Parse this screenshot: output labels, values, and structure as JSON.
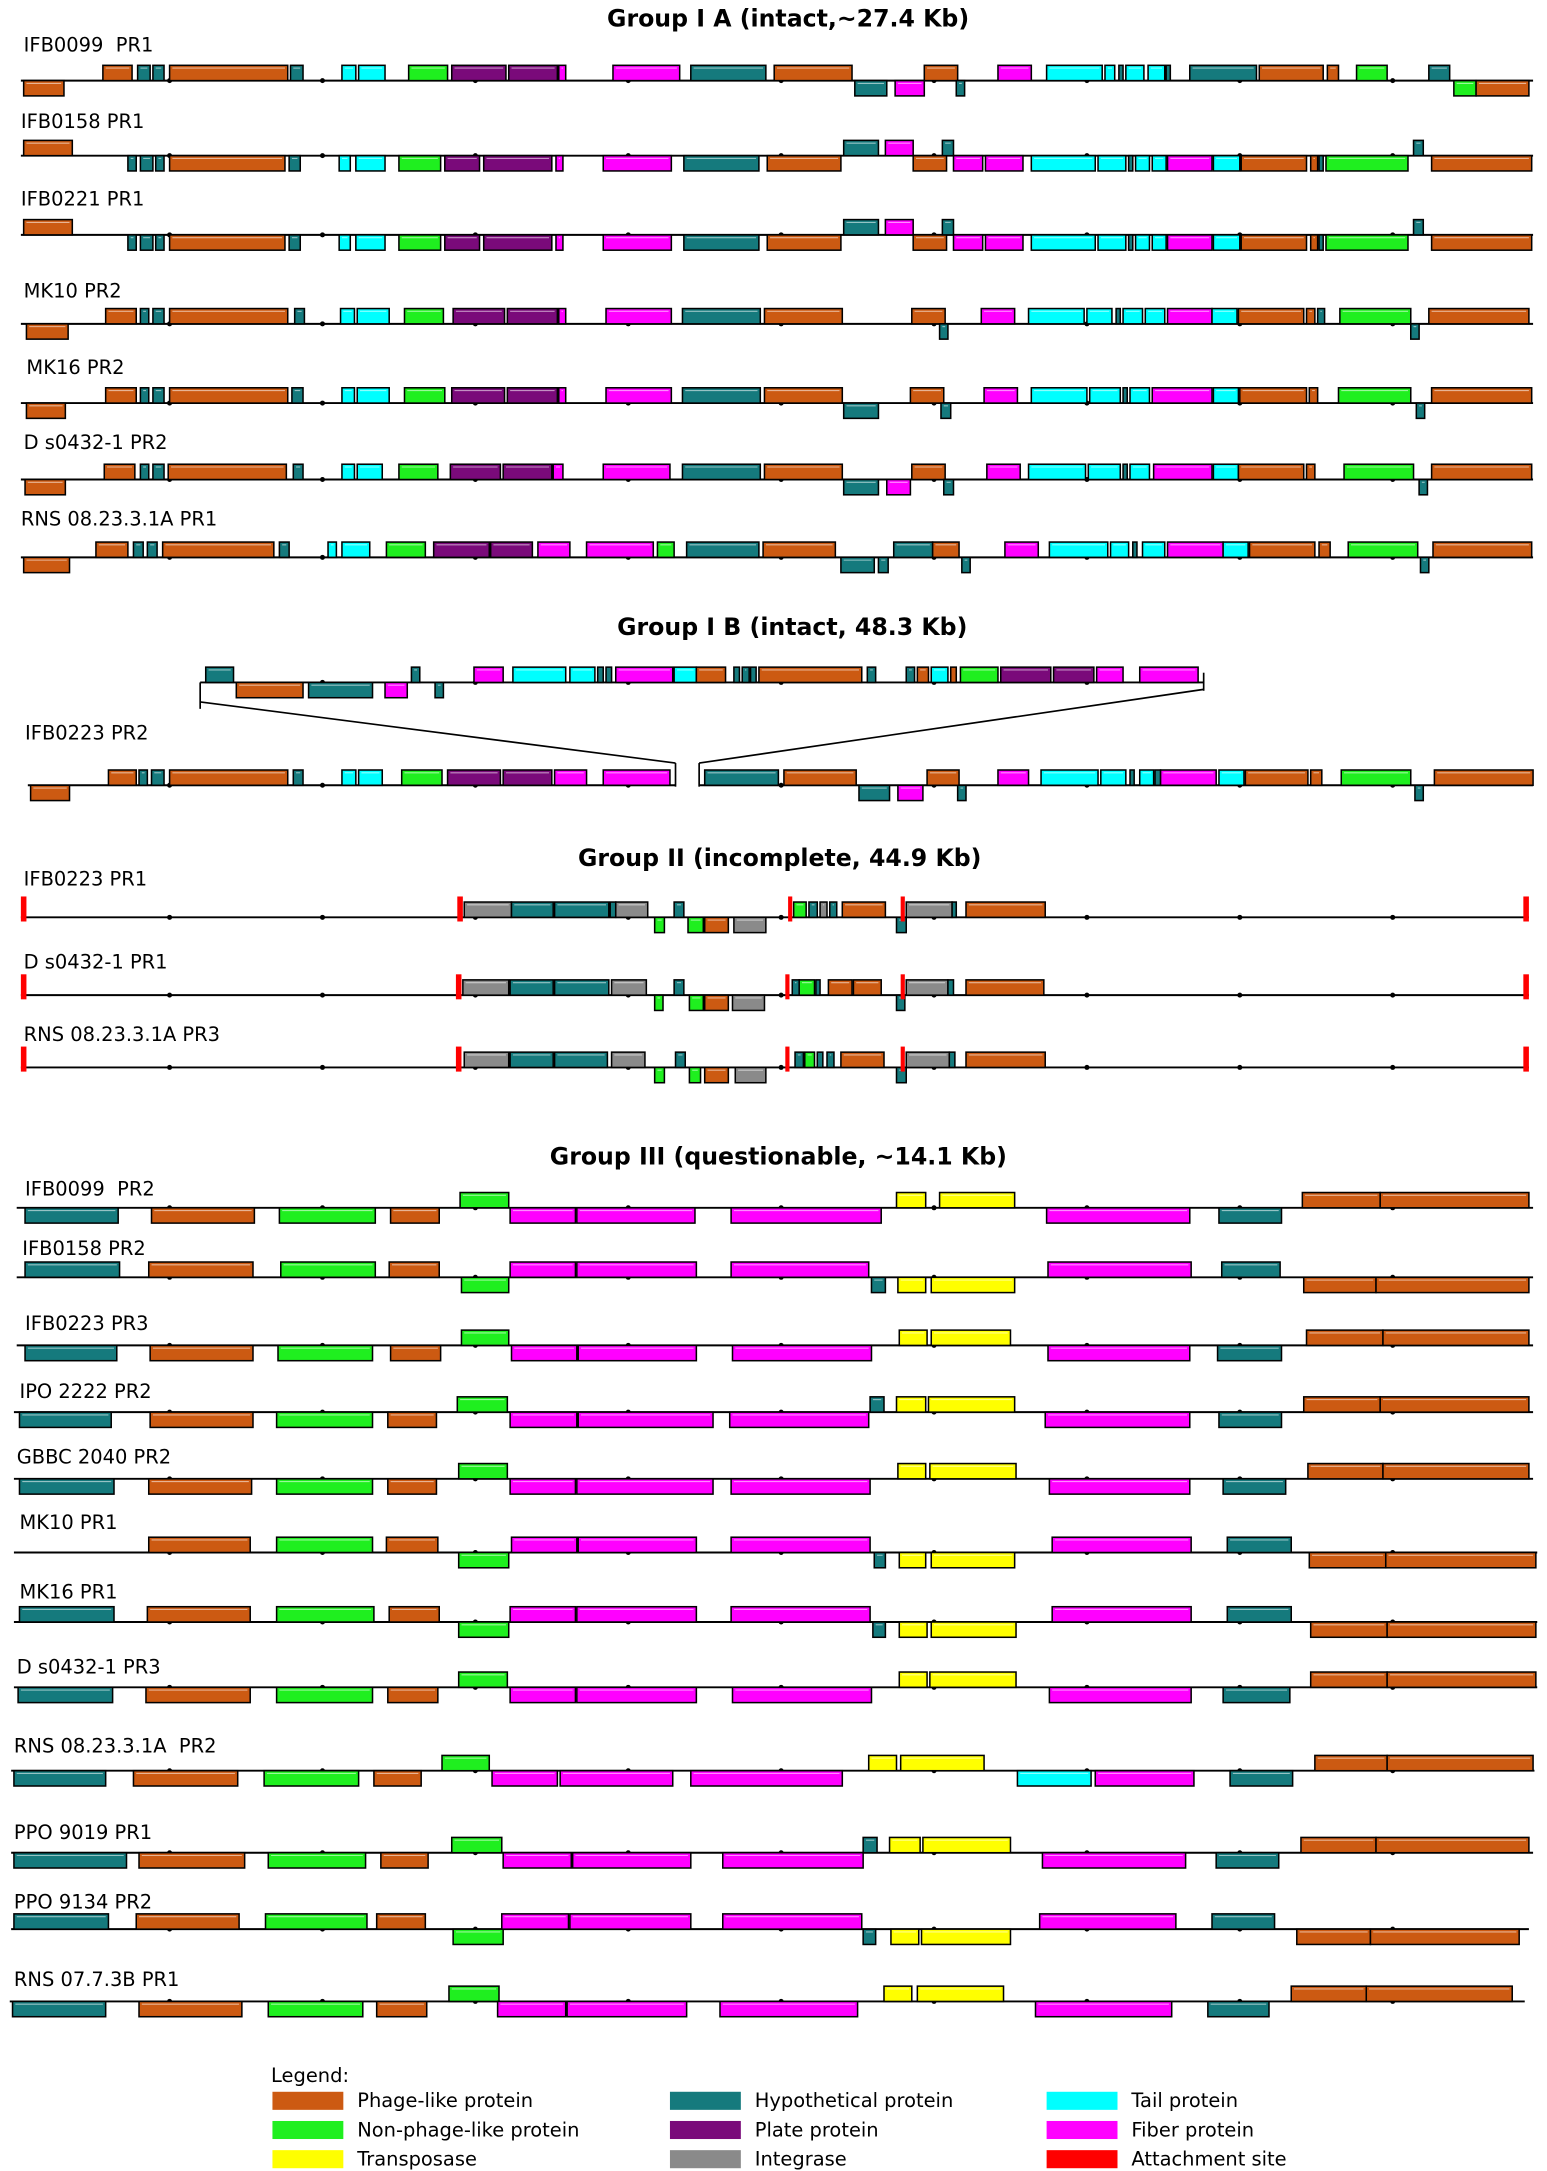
{
  "groups": [
    {
      "title": "Group I A (intact,~27.4 Kb)",
      "tracks": [
        "IFB0099  PR1",
        "IFB0158 PR1",
        "IFB0221 PR1",
        "MK10 PR2",
        "MK16 PR2",
        "D s0432-1 PR2",
        "RNS 08.23.3.1A PR1"
      ]
    },
    {
      "title": "Group I B (intact, 48.3 Kb)",
      "tracks": [
        "IFB0223 PR2"
      ]
    },
    {
      "title": "Group II (incomplete, 44.9 Kb)",
      "tracks": [
        "IFB0223 PR1",
        "D s0432-1 PR1",
        "RNS 08.23.3.1A PR3"
      ]
    },
    {
      "title": "Group III (questionable, ~14.1 Kb)",
      "tracks": [
        "IFB0099  PR2",
        "IFB0158 PR2",
        "IFB0223 PR3",
        "IPO 2222 PR2",
        "GBBC 2040 PR2",
        "MK10 PR1",
        "MK16 PR1",
        "D s0432-1 PR3",
        "RNS 08.23.3.1A  PR2",
        "PPO 9019 PR1",
        "PPO 9134 PR2",
        "RNS 07.7.3B PR1"
      ]
    }
  ],
  "legend": {
    "title": "Legend:",
    "items": [
      {
        "label": "Phage-like protein",
        "color": "#cc5a12"
      },
      {
        "label": "Non-phage-like protein",
        "color": "#1fef1f"
      },
      {
        "label": "Transposase",
        "color": "#ffff00"
      },
      {
        "label": "Hypothetical protein",
        "color": "#157a7d"
      },
      {
        "label": "Plate protein",
        "color": "#7a0a7a"
      },
      {
        "label": "Integrase",
        "color": "#8a8a8a"
      },
      {
        "label": "Tail protein",
        "color": "#00ffff"
      },
      {
        "label": "Fiber protein",
        "color": "#ff00ff"
      },
      {
        "label": "Attachment site",
        "color": "#ff0000"
      }
    ]
  }
}
